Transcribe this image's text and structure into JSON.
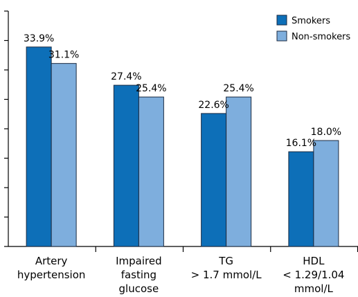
{
  "chart_data": {
    "type": "bar",
    "title": "",
    "xlabel": "",
    "ylabel": "",
    "ylim": [
      0,
      40
    ],
    "yticks": [
      0,
      5,
      10,
      15,
      20,
      25,
      30,
      35,
      40
    ],
    "grid": false,
    "legend_position": "top-right",
    "categories": [
      [
        "Artery",
        "hypertension"
      ],
      [
        "Impaired",
        "fasting",
        "glucose"
      ],
      [
        "TG",
        "> 1.7 mmol/L"
      ],
      [
        "HDL",
        "< 1.29/1.04",
        "mmol/L"
      ]
    ],
    "series": [
      {
        "name": "Smokers",
        "color": "#0d6fb8",
        "values": [
          33.9,
          27.4,
          22.6,
          16.1
        ],
        "labels": [
          "33.9%",
          "27.4%",
          "22.6%",
          "16.1%"
        ]
      },
      {
        "name": "Non-smokers",
        "color": "#7eaedd",
        "values": [
          31.1,
          25.4,
          25.4,
          18.0
        ],
        "labels": [
          "31.1%",
          "25.4%",
          "25.4%",
          "18.0%"
        ]
      }
    ]
  }
}
